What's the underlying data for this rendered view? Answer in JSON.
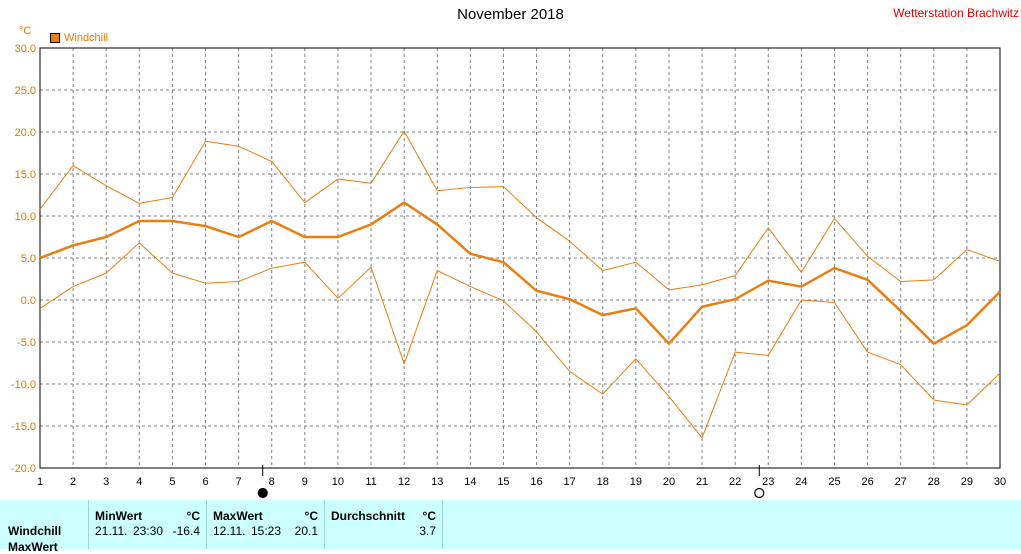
{
  "title": "November 2018",
  "station": "Wetterstation Brachwitz",
  "unit": "°C",
  "legend_label": "Windchill",
  "chart_data": {
    "type": "line",
    "x": [
      1,
      2,
      3,
      4,
      5,
      6,
      7,
      8,
      9,
      10,
      11,
      12,
      13,
      14,
      15,
      16,
      17,
      18,
      19,
      20,
      21,
      22,
      23,
      24,
      25,
      26,
      27,
      28,
      29,
      30
    ],
    "ylim": [
      -20,
      30
    ],
    "yticks": [
      "30.0",
      "25.0",
      "20.0",
      "15.0",
      "10.0",
      "5.0",
      "0.0",
      "-5.0",
      "-10.0",
      "-15.0",
      "-20.0"
    ],
    "grid": true,
    "series": [
      {
        "name": "Windchill",
        "role": "mean",
        "values": [
          5.0,
          6.5,
          7.5,
          9.4,
          9.4,
          8.8,
          7.5,
          9.4,
          7.5,
          7.5,
          9.0,
          11.6,
          9.0,
          5.5,
          4.5,
          1.1,
          0.1,
          -1.8,
          -1.0,
          -5.2,
          -0.8,
          0.1,
          2.3,
          1.6,
          3.8,
          2.4,
          -1.3,
          -5.2,
          -3.0,
          1.0
        ]
      },
      {
        "role": "max",
        "values": [
          10.8,
          16.0,
          13.6,
          11.5,
          12.2,
          18.9,
          18.3,
          16.5,
          11.6,
          14.4,
          13.9,
          20.1,
          13.0,
          13.4,
          13.5,
          9.8,
          7.0,
          3.5,
          4.5,
          1.2,
          1.8,
          2.9,
          8.6,
          3.3,
          9.7,
          5.2,
          2.2,
          2.4,
          6.0,
          4.6
        ]
      },
      {
        "role": "min",
        "values": [
          -1.0,
          1.6,
          3.2,
          6.8,
          3.2,
          2.0,
          2.2,
          3.8,
          4.5,
          0.2,
          3.9,
          -7.6,
          3.5,
          1.6,
          -0.1,
          -3.8,
          -8.5,
          -11.2,
          -7.0,
          -11.5,
          -16.4,
          -6.2,
          -6.6,
          0.0,
          -0.3,
          -6.2,
          -7.7,
          -11.9,
          -12.5,
          -8.7
        ]
      }
    ],
    "moon_markers": [
      {
        "day": 8,
        "phase": "new-moon"
      },
      {
        "day": 23,
        "phase": "full-moon"
      }
    ]
  },
  "stats": {
    "row_label": "Windchill",
    "row_label_2": "MaxWert",
    "min_header": "MinWert",
    "min_unit": "°C",
    "min_date": "21.11.",
    "min_time": "23:30",
    "min_value": "-16.4",
    "max_header": "MaxWert",
    "max_unit": "°C",
    "max_date": "12.11.",
    "max_time": "15:23",
    "max_value": "20.1",
    "avg_header": "Durchschnitt",
    "avg_unit": "°C",
    "avg_value": "3.7"
  },
  "colors": {
    "line": "#e87f10",
    "grid": "#808080",
    "axis_text": "#e07a00",
    "station": "#dd0000",
    "table_bg": "#ccffff"
  }
}
